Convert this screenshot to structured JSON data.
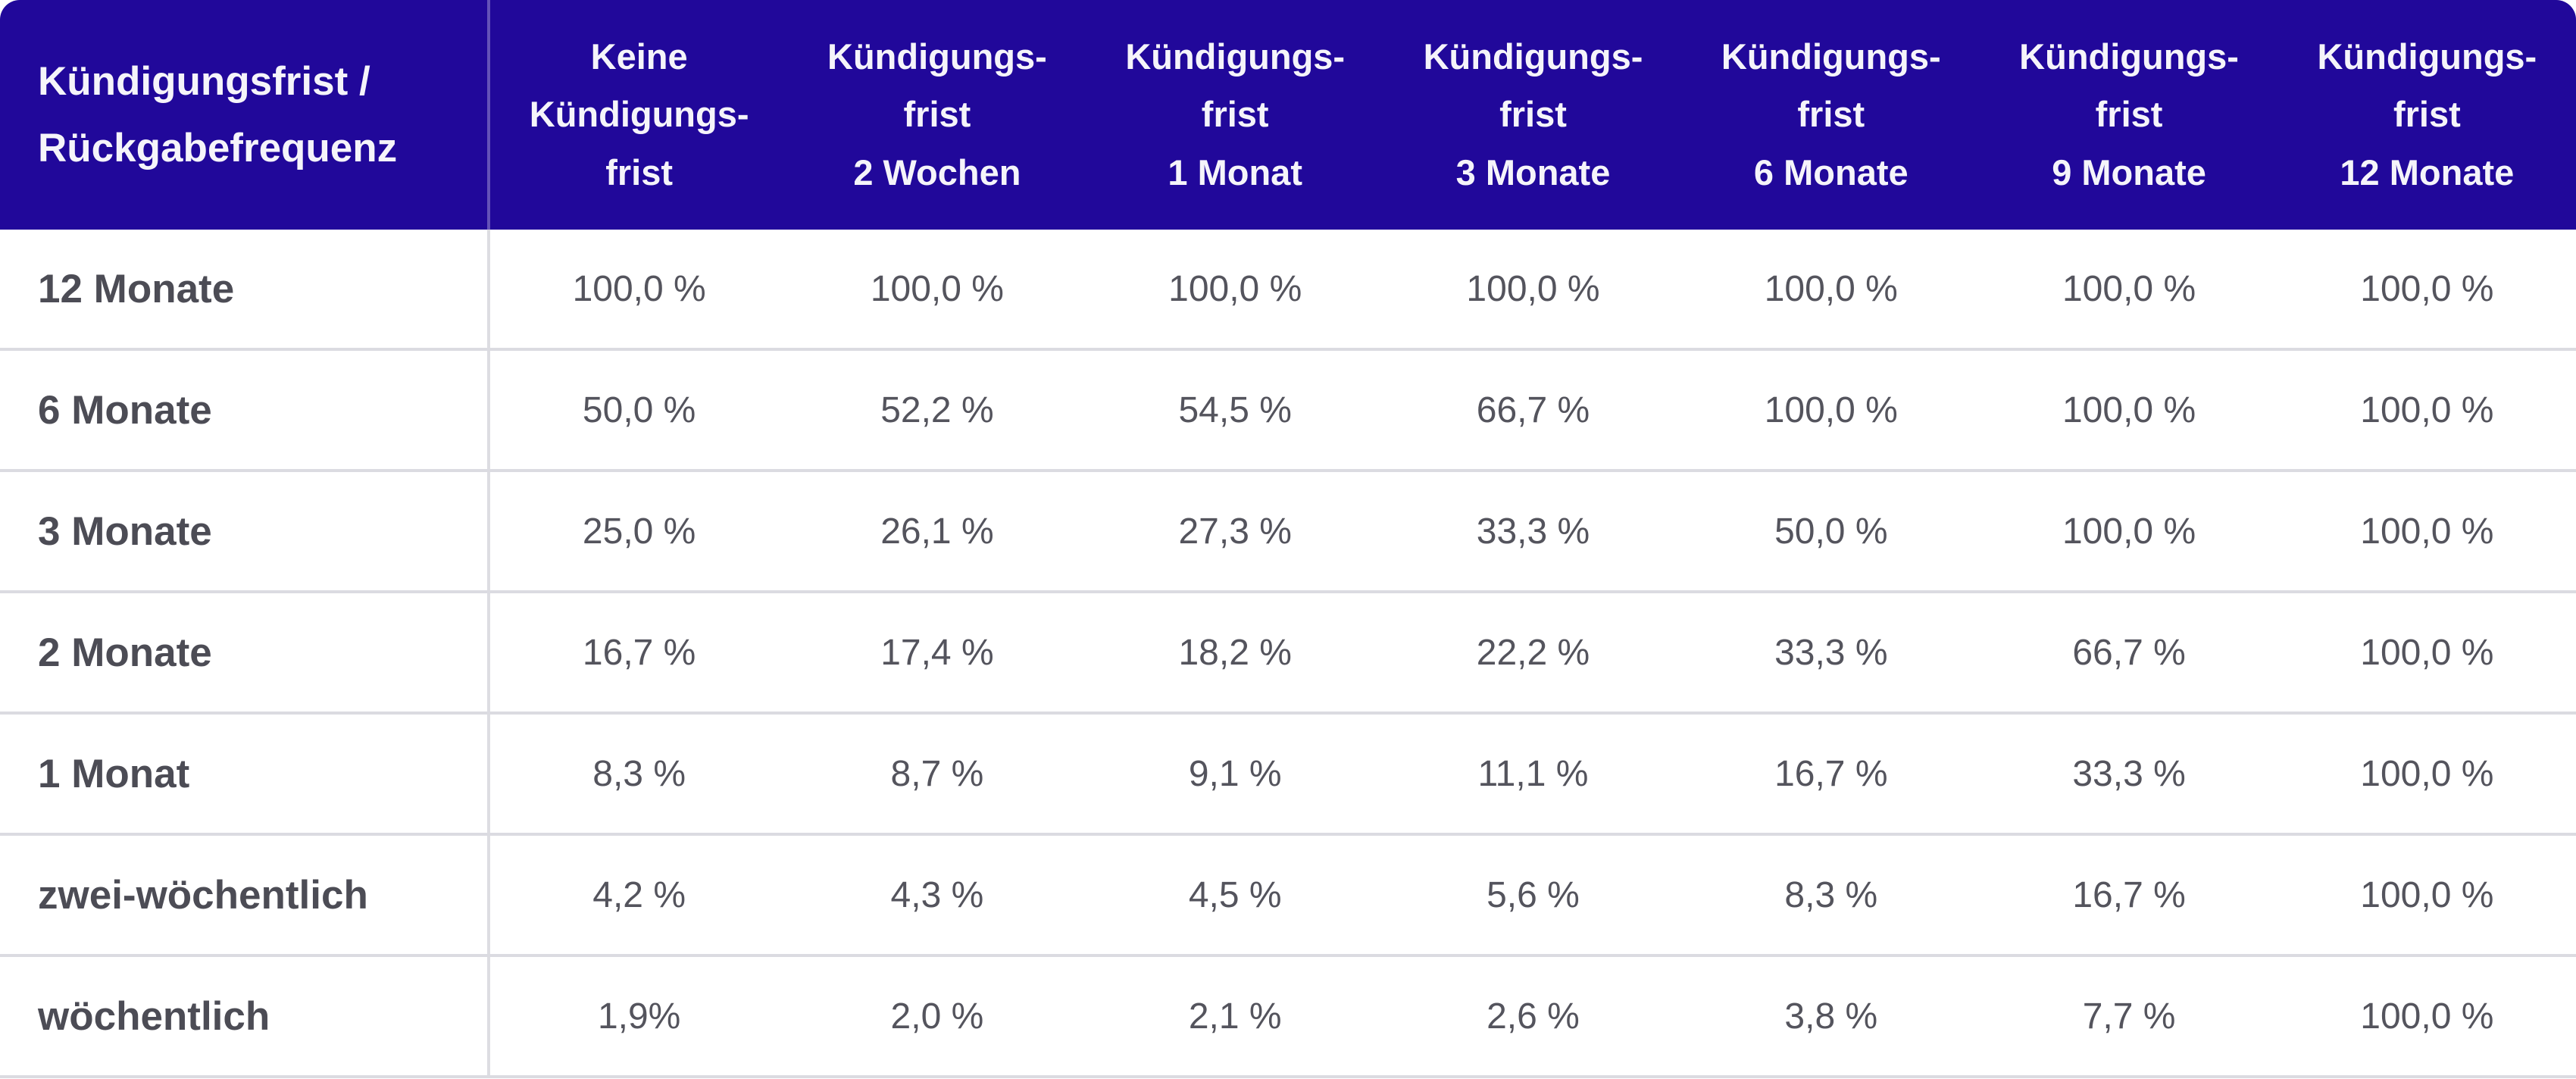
{
  "colors": {
    "header_bg": "#21089a",
    "header_text": "#f5f4fa",
    "header_divider": "rgba(255,255,255,0.30)",
    "body_divider": "#dddde2",
    "row_separator": "#dbdbe1",
    "label_text": "#4c4c55",
    "value_text": "#54545d",
    "body_bg": "#ffffff"
  },
  "table": {
    "corner_header": "Kündigungsfrist /\nRückgabefrequenz",
    "column_headers": [
      "Keine\nKündigungs-\nfrist",
      "Kündigungs-\nfrist\n2 Wochen",
      "Kündigungs-\nfrist\n1 Monat",
      "Kündigungs-\nfrist\n3 Monate",
      "Kündigungs-\nfrist\n6 Monate",
      "Kündigungs-\nfrist\n9 Monate",
      "Kündigungs-\nfrist\n12 Monate"
    ],
    "rows": [
      {
        "label": "12 Monate",
        "values": [
          "100,0 %",
          "100,0 %",
          "100,0 %",
          "100,0 %",
          "100,0 %",
          "100,0 %",
          "100,0 %"
        ]
      },
      {
        "label": "6 Monate",
        "values": [
          "50,0 %",
          "52,2 %",
          "54,5 %",
          "66,7 %",
          "100,0 %",
          "100,0 %",
          "100,0 %"
        ]
      },
      {
        "label": "3 Monate",
        "values": [
          "25,0 %",
          "26,1 %",
          "27,3 %",
          "33,3 %",
          "50,0 %",
          "100,0 %",
          "100,0 %"
        ]
      },
      {
        "label": "2 Monate",
        "values": [
          "16,7 %",
          "17,4 %",
          "18,2 %",
          "22,2 %",
          "33,3 %",
          "66,7 %",
          "100,0 %"
        ]
      },
      {
        "label": "1 Monat",
        "values": [
          "8,3 %",
          "8,7 %",
          "9,1 %",
          "11,1 %",
          "16,7 %",
          "33,3 %",
          "100,0 %"
        ]
      },
      {
        "label": "zwei-wöchentlich",
        "values": [
          "4,2 %",
          "4,3 %",
          "4,5 %",
          "5,6 %",
          "8,3 %",
          "16,7 %",
          "100,0 %"
        ]
      },
      {
        "label": "wöchentlich",
        "values": [
          "1,9%",
          "2,0 %",
          "2,1 %",
          "2,6 %",
          "3,8 %",
          "7,7 %",
          "100,0 %"
        ]
      }
    ]
  },
  "chart_data": {
    "type": "table",
    "title": "Kündigungsfrist / Rückgabefrequenz",
    "columns": [
      "Keine Kündigungsfrist",
      "Kündigungsfrist 2 Wochen",
      "Kündigungsfrist 1 Monat",
      "Kündigungsfrist 3 Monate",
      "Kündigungsfrist 6 Monate",
      "Kündigungsfrist 9 Monate",
      "Kündigungsfrist 12 Monate"
    ],
    "row_categories": [
      "12 Monate",
      "6 Monate",
      "3 Monate",
      "2 Monate",
      "1 Monat",
      "zwei-wöchentlich",
      "wöchentlich"
    ],
    "values_percent": [
      [
        100.0,
        100.0,
        100.0,
        100.0,
        100.0,
        100.0,
        100.0
      ],
      [
        50.0,
        52.2,
        54.5,
        66.7,
        100.0,
        100.0,
        100.0
      ],
      [
        25.0,
        26.1,
        27.3,
        33.3,
        50.0,
        100.0,
        100.0
      ],
      [
        16.7,
        17.4,
        18.2,
        22.2,
        33.3,
        66.7,
        100.0
      ],
      [
        8.3,
        8.7,
        9.1,
        11.1,
        16.7,
        33.3,
        100.0
      ],
      [
        4.2,
        4.3,
        4.5,
        5.6,
        8.3,
        16.7,
        100.0
      ],
      [
        1.9,
        2.0,
        2.1,
        2.6,
        3.8,
        7.7,
        100.0
      ]
    ],
    "unit": "%",
    "decimal_separator": ","
  }
}
